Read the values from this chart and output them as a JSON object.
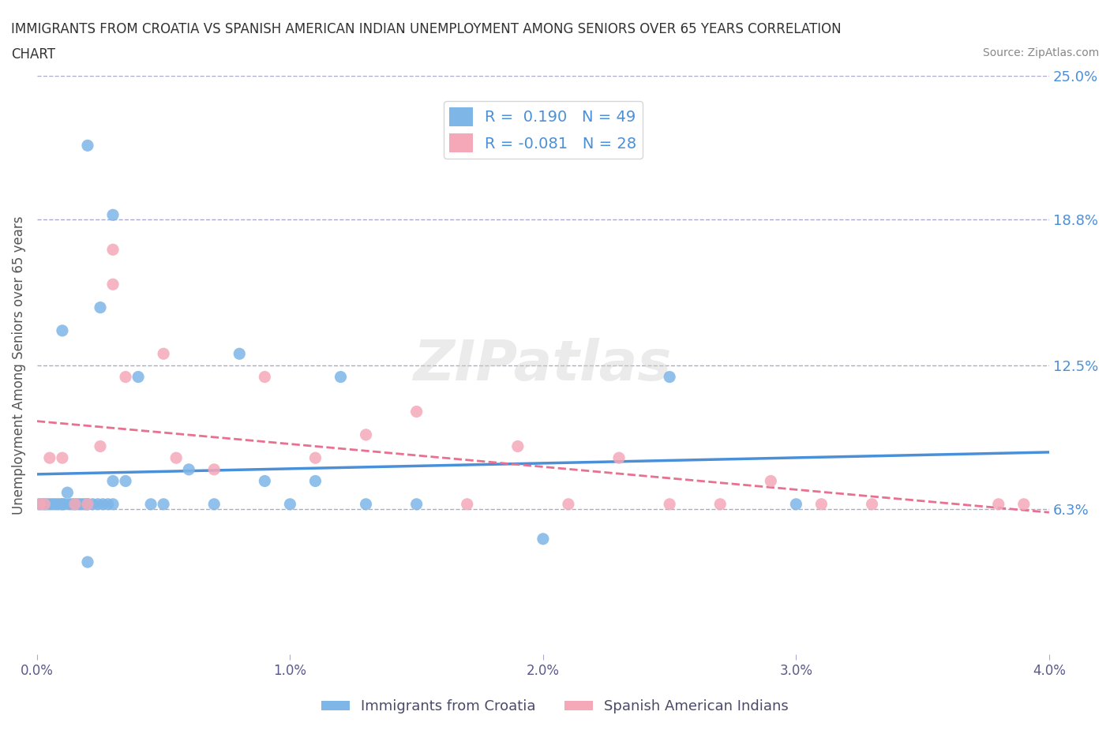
{
  "title_line1": "IMMIGRANTS FROM CROATIA VS SPANISH AMERICAN INDIAN UNEMPLOYMENT AMONG SENIORS OVER 65 YEARS CORRELATION",
  "title_line2": "CHART",
  "source": "Source: ZipAtlas.com",
  "ylabel": "Unemployment Among Seniors over 65 years",
  "xlim": [
    0.0,
    0.04
  ],
  "ylim": [
    0.0,
    0.25
  ],
  "xtick_vals": [
    0.0,
    0.01,
    0.02,
    0.03,
    0.04
  ],
  "xtick_labels": [
    "0.0%",
    "1.0%",
    "2.0%",
    "3.0%",
    "4.0%"
  ],
  "ytick_labels_right": [
    "6.3%",
    "12.5%",
    "18.8%",
    "25.0%"
  ],
  "ytick_values_right": [
    0.063,
    0.125,
    0.188,
    0.25
  ],
  "R_blue": 0.19,
  "N_blue": 49,
  "R_pink": -0.081,
  "N_pink": 28,
  "blue_color": "#7EB6E8",
  "pink_color": "#F4A8B8",
  "trend_blue_color": "#4A90D9",
  "trend_pink_color": "#E87090",
  "legend_label_blue": "Immigrants from Croatia",
  "legend_label_pink": "Spanish American Indians",
  "watermark": "ZIPatlas",
  "blue_scatter_x": [
    0.0001,
    0.0002,
    0.0003,
    0.0004,
    0.0005,
    0.0006,
    0.0007,
    0.0008,
    0.0009,
    0.001,
    0.001,
    0.0011,
    0.0012,
    0.0013,
    0.0014,
    0.0015,
    0.0016,
    0.0017,
    0.0018,
    0.0019,
    0.002,
    0.002,
    0.002,
    0.0022,
    0.0024,
    0.0025,
    0.0026,
    0.0028,
    0.003,
    0.003,
    0.0035,
    0.004,
    0.0045,
    0.005,
    0.006,
    0.007,
    0.008,
    0.009,
    0.01,
    0.011,
    0.012,
    0.013,
    0.015,
    0.02,
    0.025,
    0.03,
    0.001,
    0.002,
    0.003
  ],
  "blue_scatter_y": [
    0.065,
    0.065,
    0.065,
    0.065,
    0.065,
    0.065,
    0.065,
    0.065,
    0.065,
    0.065,
    0.065,
    0.065,
    0.07,
    0.065,
    0.065,
    0.065,
    0.065,
    0.065,
    0.065,
    0.065,
    0.065,
    0.065,
    0.04,
    0.065,
    0.065,
    0.15,
    0.065,
    0.065,
    0.065,
    0.075,
    0.075,
    0.12,
    0.065,
    0.065,
    0.08,
    0.065,
    0.13,
    0.075,
    0.065,
    0.075,
    0.12,
    0.065,
    0.065,
    0.05,
    0.12,
    0.065,
    0.14,
    0.22,
    0.19
  ],
  "pink_scatter_x": [
    0.0001,
    0.0003,
    0.0005,
    0.001,
    0.0015,
    0.002,
    0.003,
    0.003,
    0.005,
    0.007,
    0.009,
    0.011,
    0.013,
    0.015,
    0.017,
    0.019,
    0.021,
    0.023,
    0.025,
    0.027,
    0.029,
    0.031,
    0.033,
    0.0025,
    0.0035,
    0.0055,
    0.038,
    0.039
  ],
  "pink_scatter_y": [
    0.065,
    0.065,
    0.085,
    0.085,
    0.065,
    0.065,
    0.175,
    0.16,
    0.13,
    0.08,
    0.12,
    0.085,
    0.095,
    0.105,
    0.065,
    0.09,
    0.065,
    0.085,
    0.065,
    0.065,
    0.075,
    0.065,
    0.065,
    0.09,
    0.12,
    0.085,
    0.065,
    0.065
  ]
}
